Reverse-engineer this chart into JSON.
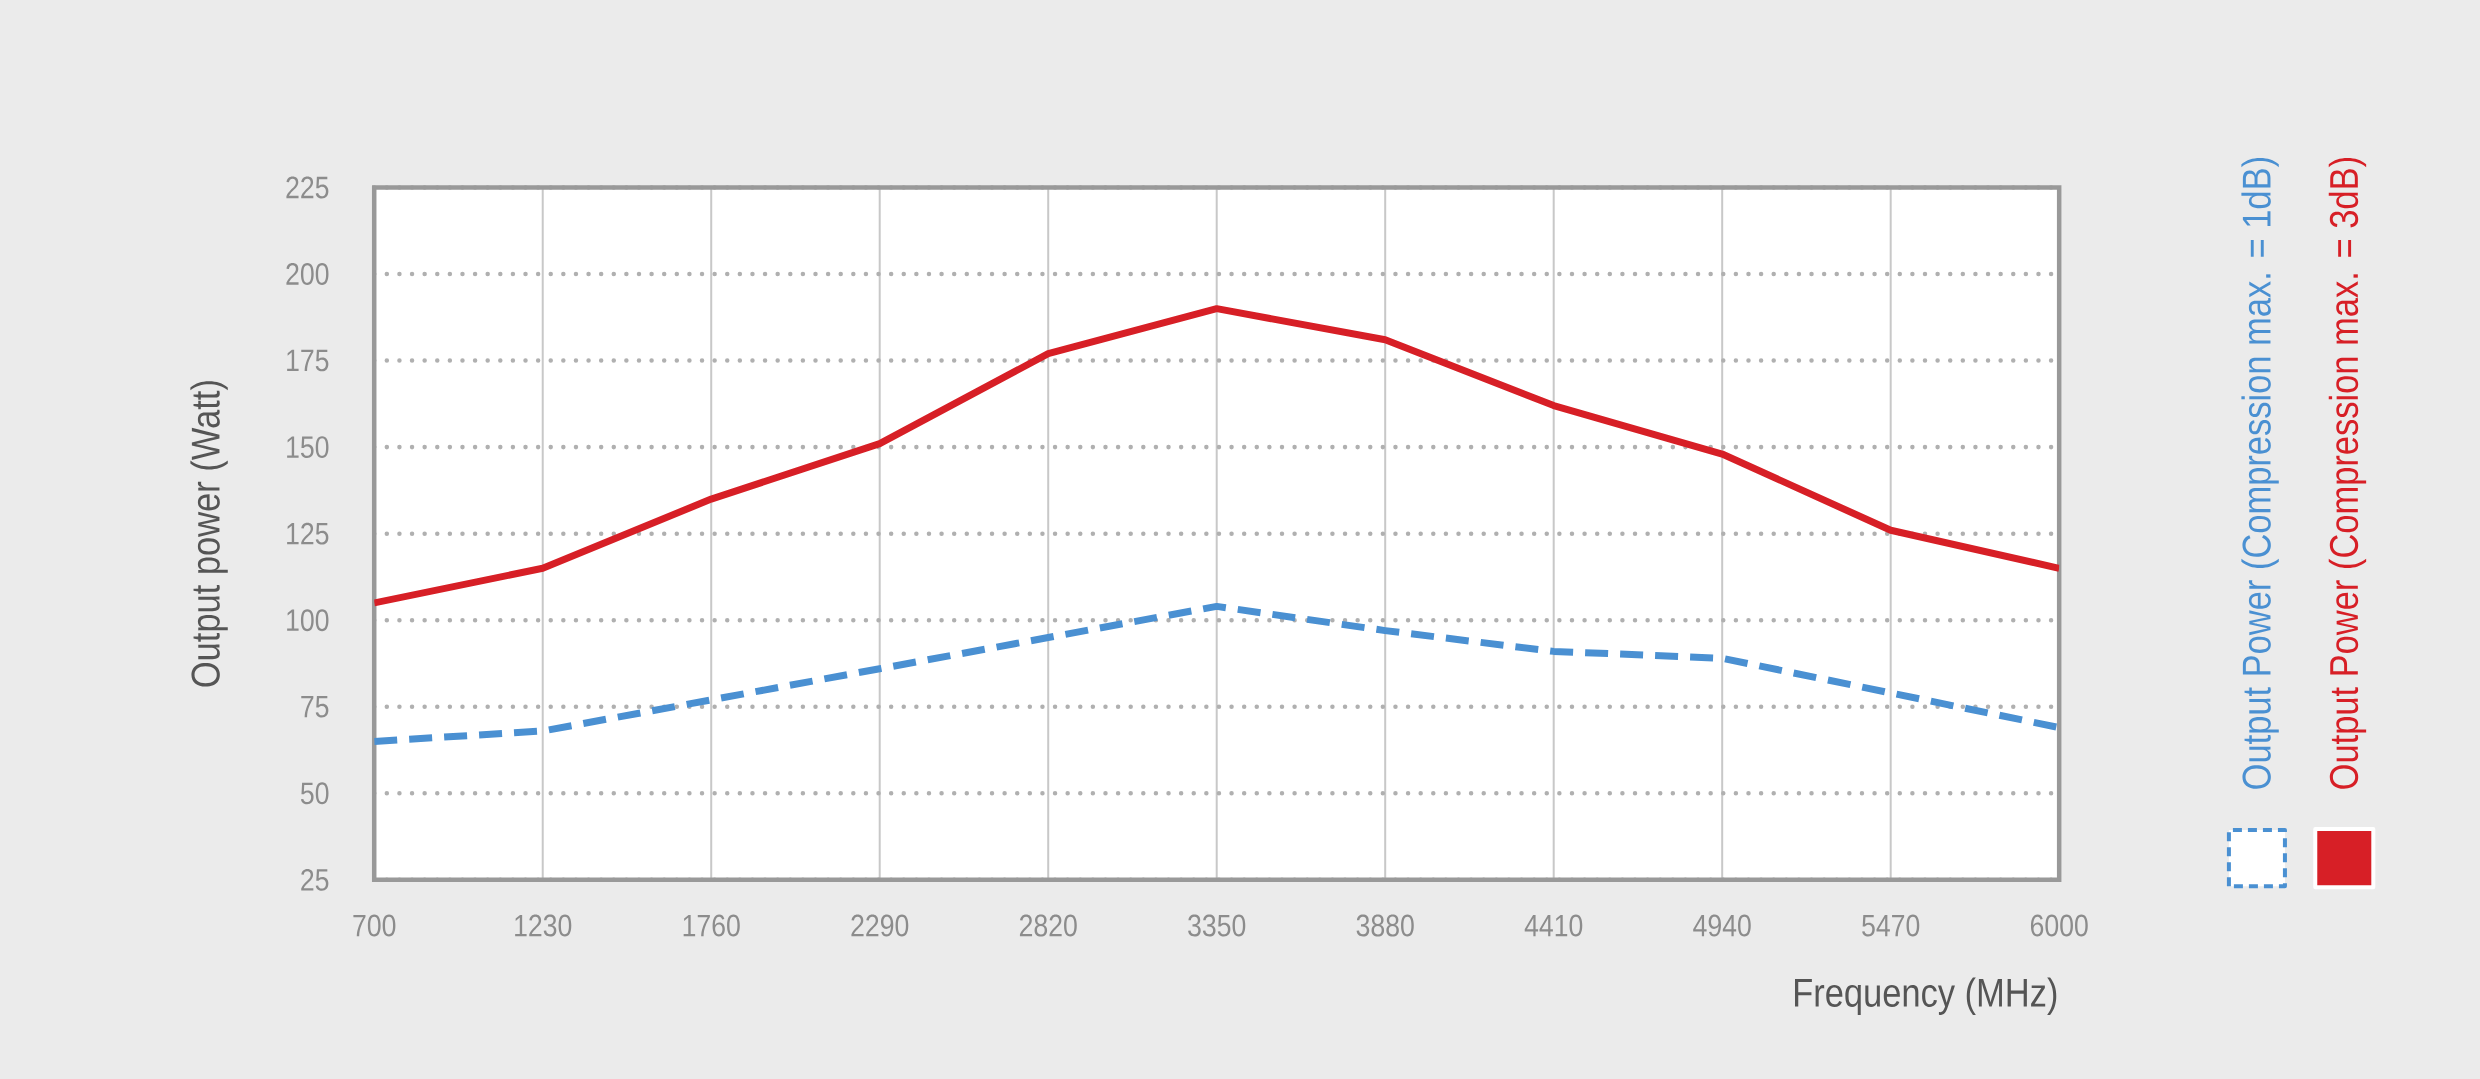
{
  "chart_data": {
    "type": "line",
    "xlabel": "Frequency (MHz)",
    "ylabel": "Output power (Watt)",
    "x": [
      700,
      1230,
      1760,
      2290,
      2820,
      3350,
      3880,
      4410,
      4940,
      5470,
      6000
    ],
    "series": [
      {
        "name": "Output Power (Compression max. = 1dB)",
        "color": "#4a90d2",
        "line_style": "dashed",
        "values": [
          65,
          68,
          77,
          86,
          95,
          104,
          97,
          91,
          89,
          79,
          69
        ]
      },
      {
        "name": "Output Power (Compression max. = 3dB)",
        "color": "#d71f26",
        "line_style": "solid",
        "values": [
          105,
          115,
          135,
          151,
          177,
          190,
          181,
          162,
          148,
          126,
          115
        ]
      }
    ],
    "xlim": [
      700,
      6000
    ],
    "xticks": [
      700,
      1230,
      1760,
      2290,
      2820,
      3350,
      3880,
      4410,
      4940,
      5470,
      6000
    ],
    "ylim": [
      25,
      225
    ],
    "yticks": [
      25,
      50,
      75,
      100,
      125,
      150,
      175,
      200,
      225
    ],
    "grid": true,
    "legend": "right"
  }
}
